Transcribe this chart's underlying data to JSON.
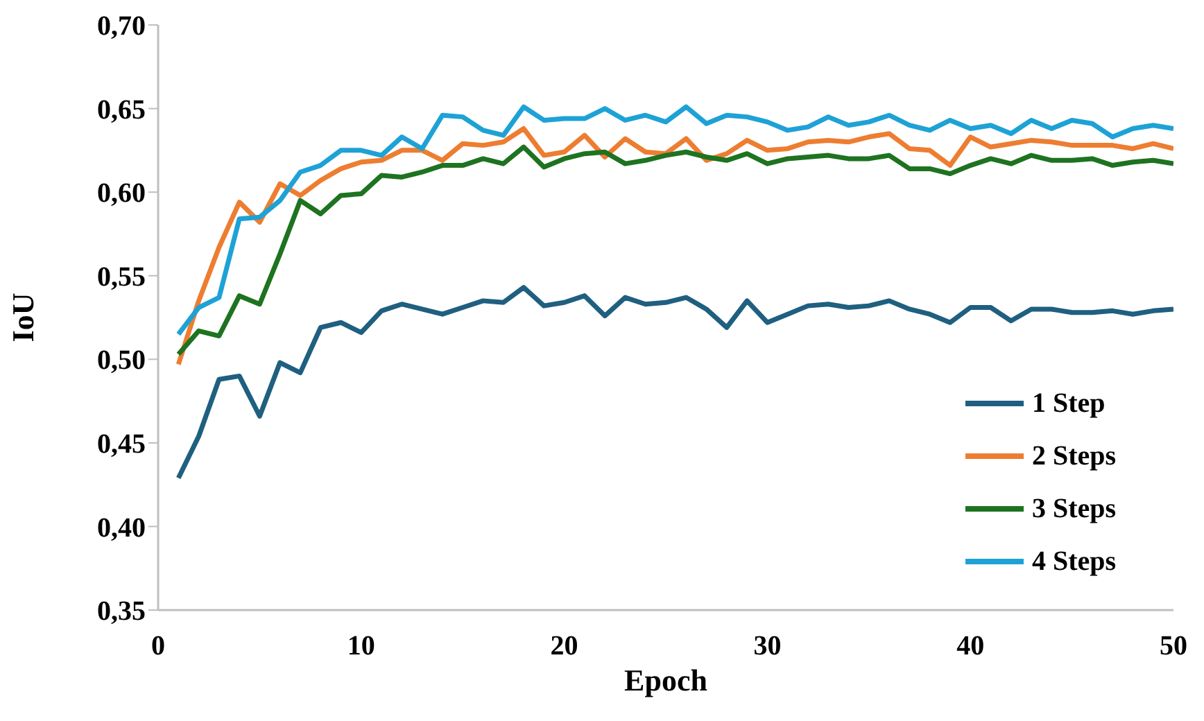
{
  "chart_data": {
    "type": "line",
    "xlabel": "Epoch",
    "ylabel": "IoU",
    "x": [
      1,
      2,
      3,
      4,
      5,
      6,
      7,
      8,
      9,
      10,
      11,
      12,
      13,
      14,
      15,
      16,
      17,
      18,
      19,
      20,
      21,
      22,
      23,
      24,
      25,
      26,
      27,
      28,
      29,
      30,
      31,
      32,
      33,
      34,
      35,
      36,
      37,
      38,
      39,
      40,
      41,
      42,
      43,
      44,
      45,
      46,
      47,
      48,
      49,
      50
    ],
    "xlim": [
      0,
      50
    ],
    "xticks": [
      0,
      10,
      20,
      30,
      40,
      50
    ],
    "ylim": [
      0.35,
      0.7
    ],
    "yticks": [
      {
        "value": 0.35,
        "label": "0,35"
      },
      {
        "value": 0.4,
        "label": "0,40"
      },
      {
        "value": 0.45,
        "label": "0,45"
      },
      {
        "value": 0.5,
        "label": "0,50"
      },
      {
        "value": 0.55,
        "label": "0,55"
      },
      {
        "value": 0.6,
        "label": "0,60"
      },
      {
        "value": 0.65,
        "label": "0,65"
      },
      {
        "value": 0.7,
        "label": "0,70"
      }
    ],
    "grid": false,
    "legend": "bottom right",
    "marker": "none",
    "line_style": "solid",
    "series": [
      {
        "name": "1 Step",
        "color": "#1f5f80",
        "values": [
          0.429,
          0.454,
          0.488,
          0.49,
          0.466,
          0.498,
          0.492,
          0.519,
          0.522,
          0.516,
          0.529,
          0.533,
          0.53,
          0.527,
          0.531,
          0.535,
          0.534,
          0.543,
          0.532,
          0.534,
          0.538,
          0.526,
          0.537,
          0.533,
          0.534,
          0.537,
          0.53,
          0.519,
          0.535,
          0.522,
          0.527,
          0.532,
          0.533,
          0.531,
          0.532,
          0.535,
          0.53,
          0.527,
          0.522,
          0.531,
          0.531,
          0.523,
          0.53,
          0.53,
          0.528,
          0.528,
          0.529,
          0.527,
          0.529,
          0.53
        ]
      },
      {
        "name": "2 Steps",
        "color": "#ed7d31",
        "values": [
          0.497,
          0.535,
          0.567,
          0.594,
          0.582,
          0.605,
          0.598,
          0.607,
          0.614,
          0.618,
          0.619,
          0.625,
          0.625,
          0.619,
          0.629,
          0.628,
          0.63,
          0.638,
          0.622,
          0.624,
          0.634,
          0.621,
          0.632,
          0.624,
          0.623,
          0.632,
          0.619,
          0.623,
          0.631,
          0.625,
          0.626,
          0.63,
          0.631,
          0.63,
          0.633,
          0.635,
          0.626,
          0.625,
          0.616,
          0.633,
          0.627,
          0.629,
          0.631,
          0.63,
          0.628,
          0.628,
          0.628,
          0.626,
          0.629,
          0.626
        ]
      },
      {
        "name": "3 Steps",
        "color": "#1e7320",
        "values": [
          0.503,
          0.517,
          0.514,
          0.538,
          0.533,
          0.563,
          0.595,
          0.587,
          0.598,
          0.599,
          0.61,
          0.609,
          0.612,
          0.616,
          0.616,
          0.62,
          0.617,
          0.627,
          0.615,
          0.62,
          0.623,
          0.624,
          0.617,
          0.619,
          0.622,
          0.624,
          0.621,
          0.619,
          0.623,
          0.617,
          0.62,
          0.621,
          0.622,
          0.62,
          0.62,
          0.622,
          0.614,
          0.614,
          0.611,
          0.616,
          0.62,
          0.617,
          0.622,
          0.619,
          0.619,
          0.62,
          0.616,
          0.618,
          0.619,
          0.617
        ]
      },
      {
        "name": "4 Steps",
        "color": "#1ea2d6",
        "values": [
          0.515,
          0.531,
          0.537,
          0.584,
          0.585,
          0.595,
          0.612,
          0.616,
          0.625,
          0.625,
          0.622,
          0.633,
          0.626,
          0.646,
          0.645,
          0.637,
          0.634,
          0.651,
          0.643,
          0.644,
          0.644,
          0.65,
          0.643,
          0.646,
          0.642,
          0.651,
          0.641,
          0.646,
          0.645,
          0.642,
          0.637,
          0.639,
          0.645,
          0.64,
          0.642,
          0.646,
          0.64,
          0.637,
          0.643,
          0.638,
          0.64,
          0.635,
          0.643,
          0.638,
          0.643,
          0.641,
          0.633,
          0.638,
          0.64,
          0.638
        ]
      }
    ]
  }
}
